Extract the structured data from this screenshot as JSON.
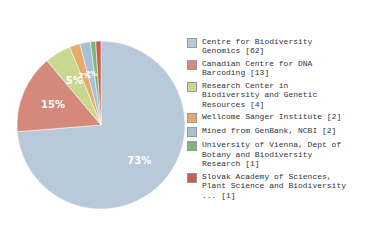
{
  "chart_data": {
    "type": "pie",
    "categories": [
      "Centre for Biodiversity\nGenomics [62]",
      "Canadian Centre for DNA\nBarcoding [13]",
      "Research Center in\nBiodiversity and Genetic\nResources [4]",
      "Wellcome Sanger Institute [2]",
      "Mined from GenBank, NCBI [2]",
      "University of Vienna, Dept of\nBotany and Biodiversity\nResearch [1]",
      "Slovak Academy of Sciences,\nPlant Science and Biodiversity\n... [1]"
    ],
    "values": [
      73,
      15,
      5,
      2,
      2,
      1,
      1
    ],
    "value_labels": [
      "73%",
      "15%",
      "5%",
      "2%",
      "2%",
      null,
      null
    ],
    "colors": [
      "#b8c9d9",
      "#d4897a",
      "#c9d890",
      "#e8a96a",
      "#a8bfd8",
      "#7ab87a",
      "#c86050"
    ],
    "data_labels": true,
    "legend": "right"
  }
}
